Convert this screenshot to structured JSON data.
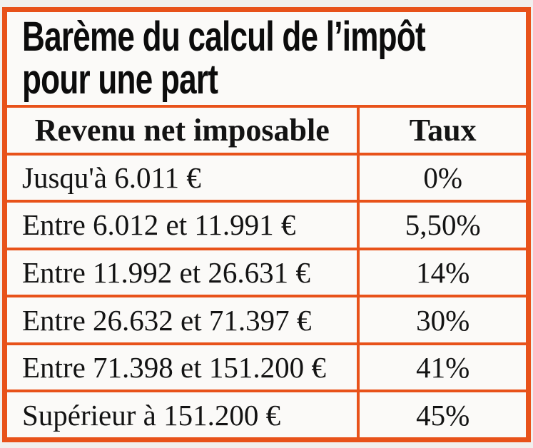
{
  "title": {
    "line1": "Barème du calcul de l’impôt",
    "line2": "pour une part"
  },
  "colors": {
    "border_orange": "#e8521a",
    "page_background": "#f1f0ee",
    "cell_background": "#fbfaf8",
    "text": "#131313"
  },
  "chart_data": {
    "type": "table",
    "title": "Barème du calcul de l’impôt pour une part",
    "columns": [
      "Revenu net imposable",
      "Taux"
    ],
    "rows": [
      [
        "Jusqu'à 6.011 €",
        "0%"
      ],
      [
        "Entre 6.012 et 11.991 €",
        "5,50%"
      ],
      [
        "Entre 11.992 et 26.631 €",
        "14%"
      ],
      [
        "Entre 26.632 et 71.397 €",
        "30%"
      ],
      [
        "Entre 71.398 et 151.200 €",
        "41%"
      ],
      [
        "Supérieur à 151.200 €",
        "45%"
      ]
    ]
  }
}
